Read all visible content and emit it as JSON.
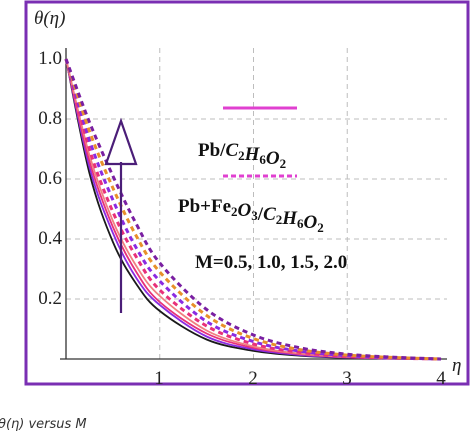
{
  "chart_data": {
    "type": "line",
    "title": "",
    "xlabel": "η",
    "ylabel": "θ(η)",
    "xlim": [
      0,
      4
    ],
    "ylim": [
      0,
      1
    ],
    "grid": true,
    "x_ticks": [
      "1",
      "2",
      "3",
      "4"
    ],
    "y_ticks": [
      "0.2",
      "0.4",
      "0.6",
      "0.8",
      "1.0"
    ],
    "series": [
      {
        "group": "Pb/C2H6O2",
        "M": 0.5,
        "style": "solid",
        "color": "#1a1a1a",
        "x": [
          0,
          0.25,
          0.5,
          0.75,
          1,
          1.5,
          2,
          2.5,
          3,
          3.5,
          4
        ],
        "values": [
          1,
          0.62,
          0.39,
          0.25,
          0.16,
          0.065,
          0.027,
          0.011,
          0.004,
          0.001,
          0
        ]
      },
      {
        "group": "Pb/C2H6O2",
        "M": 1.0,
        "style": "solid",
        "color": "#8a2be2",
        "x": [
          0,
          0.25,
          0.5,
          0.75,
          1,
          1.5,
          2,
          2.5,
          3,
          3.5,
          4
        ],
        "values": [
          1,
          0.64,
          0.42,
          0.27,
          0.18,
          0.075,
          0.032,
          0.013,
          0.005,
          0.0015,
          0
        ]
      },
      {
        "group": "Pb/C2H6O2",
        "M": 1.5,
        "style": "solid",
        "color": "#e8307a",
        "x": [
          0,
          0.25,
          0.5,
          0.75,
          1,
          1.5,
          2,
          2.5,
          3,
          3.5,
          4
        ],
        "values": [
          1,
          0.66,
          0.44,
          0.29,
          0.19,
          0.085,
          0.037,
          0.016,
          0.006,
          0.002,
          0
        ]
      },
      {
        "group": "Pb/C2H6O2",
        "M": 2.0,
        "style": "solid",
        "color": "#f08080",
        "x": [
          0,
          0.25,
          0.5,
          0.75,
          1,
          1.5,
          2,
          2.5,
          3,
          3.5,
          4
        ],
        "values": [
          1,
          0.68,
          0.46,
          0.31,
          0.21,
          0.095,
          0.042,
          0.018,
          0.007,
          0.0025,
          0
        ]
      },
      {
        "group": "Pb+Fe2O3/C2H6O2",
        "M": 0.5,
        "style": "dashed",
        "color": "#e8307a",
        "x": [
          0,
          0.25,
          0.5,
          0.75,
          1,
          1.5,
          2,
          2.5,
          3,
          3.5,
          4
        ],
        "values": [
          1,
          0.7,
          0.49,
          0.34,
          0.23,
          0.11,
          0.05,
          0.022,
          0.009,
          0.003,
          0
        ]
      },
      {
        "group": "Pb+Fe2O3/C2H6O2",
        "M": 1.0,
        "style": "dashed",
        "color": "#8a2be2",
        "x": [
          0,
          0.25,
          0.5,
          0.75,
          1,
          1.5,
          2,
          2.5,
          3,
          3.5,
          4
        ],
        "values": [
          1,
          0.73,
          0.53,
          0.37,
          0.26,
          0.125,
          0.058,
          0.026,
          0.011,
          0.004,
          0
        ]
      },
      {
        "group": "Pb+Fe2O3/C2H6O2",
        "M": 1.5,
        "style": "dashed",
        "color": "#e8902a",
        "x": [
          0,
          0.25,
          0.5,
          0.75,
          1,
          1.5,
          2,
          2.5,
          3,
          3.5,
          4
        ],
        "values": [
          1,
          0.76,
          0.57,
          0.41,
          0.29,
          0.145,
          0.068,
          0.031,
          0.013,
          0.005,
          0
        ]
      },
      {
        "group": "Pb+Fe2O3/C2H6O2",
        "M": 2.0,
        "style": "dashed",
        "color": "#7a1fa2",
        "x": [
          0,
          0.25,
          0.5,
          0.75,
          1,
          1.5,
          2,
          2.5,
          3,
          3.5,
          4
        ],
        "values": [
          1,
          0.79,
          0.61,
          0.45,
          0.32,
          0.165,
          0.08,
          0.037,
          0.016,
          0.006,
          0
        ]
      }
    ],
    "legend": [
      {
        "label_parts": [
          "Pb/",
          "C",
          "2",
          "H",
          "6",
          "O",
          "2"
        ],
        "style": "solid",
        "color": "#e040d0"
      },
      {
        "label_parts": [
          "Pb+Fe",
          "2",
          "O",
          "3",
          "/",
          "C",
          "2",
          "H",
          "6",
          "O",
          "2"
        ],
        "style": "dashed",
        "color": "#e040d0"
      }
    ],
    "annotation": "M=0.5, 1.0, 1.5, 2.0",
    "arrow_direction": "up"
  },
  "caption": "θ(η) versus M",
  "colors": {
    "frame": "#7a2fb3",
    "arrow": "#4b1e78",
    "grid": "#bdbdbd"
  }
}
